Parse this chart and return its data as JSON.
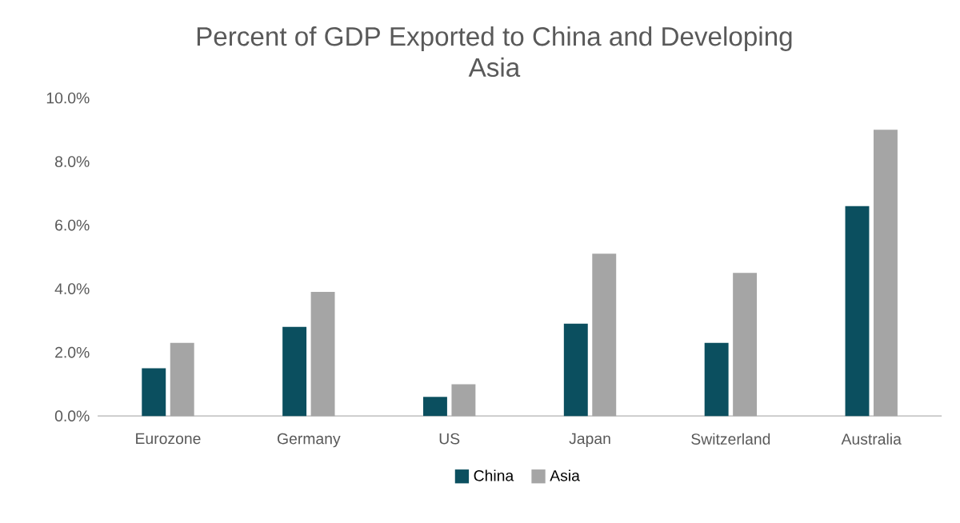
{
  "chart_data": {
    "type": "bar",
    "title": "Percent of GDP Exported to China and Developing Asia",
    "categories": [
      "Eurozone",
      "Germany",
      "US",
      "Japan",
      "Switzerland",
      "Australia"
    ],
    "series": [
      {
        "name": "China",
        "color": "#0b4f5f",
        "values": [
          1.5,
          2.8,
          0.6,
          2.9,
          2.3,
          6.6
        ]
      },
      {
        "name": "Asia",
        "color": "#a5a5a5",
        "values": [
          2.3,
          3.9,
          1.0,
          5.1,
          4.5,
          9.0
        ]
      }
    ],
    "ylim": [
      0,
      10
    ],
    "yticks": [
      {
        "value": 0,
        "label": "0.0%"
      },
      {
        "value": 2,
        "label": "2.0%"
      },
      {
        "value": 4,
        "label": "4.0%"
      },
      {
        "value": 6,
        "label": "6.0%"
      },
      {
        "value": 8,
        "label": "8.0%"
      },
      {
        "value": 10,
        "label": "10.0%"
      }
    ],
    "legend": "bottom"
  }
}
